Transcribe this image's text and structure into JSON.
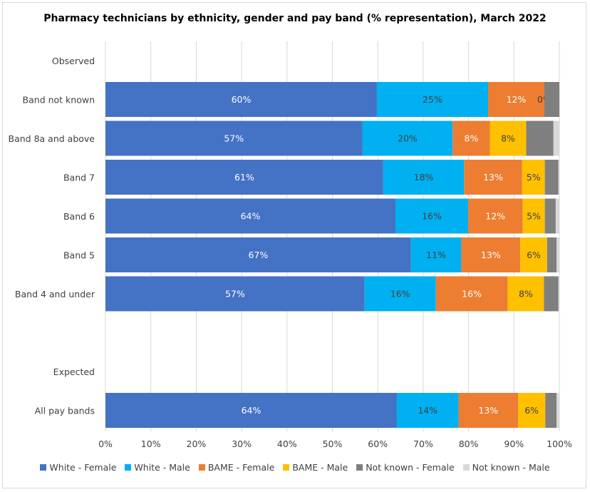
{
  "chart_data": {
    "type": "bar",
    "orientation": "horizontal",
    "stacked": true,
    "title": "Pharmacy technicians by ethnicity, gender and pay band (% representation), March 2022",
    "xlabel": "",
    "ylabel": "",
    "xlim": [
      0,
      100
    ],
    "x_ticks": [
      "0%",
      "10%",
      "20%",
      "30%",
      "40%",
      "50%",
      "60%",
      "70%",
      "80%",
      "90%",
      "100%"
    ],
    "group_labels": [
      {
        "label": "Observed",
        "row": 0
      },
      {
        "label": "Expected",
        "row": 8
      }
    ],
    "categories": [
      "Band not known",
      "Band 8a and above",
      "Band 7",
      "Band 6",
      "Band 5",
      "Band 4 and under",
      "All pay bands"
    ],
    "category_rows": [
      1,
      2,
      3,
      4,
      5,
      6,
      9
    ],
    "series": [
      {
        "name": "White - Female",
        "color": "#4472C4",
        "label_color": "#ffffff",
        "values": [
          59.8,
          56.6,
          61.2,
          63.9,
          67.3,
          57.1,
          64.2
        ],
        "labels": [
          "60%",
          "57%",
          "61%",
          "64%",
          "67%",
          "57%",
          "64%"
        ]
      },
      {
        "name": "White - Male",
        "color": "#00B0F0",
        "label_color": "#404040",
        "values": [
          24.5,
          19.9,
          17.8,
          16.0,
          11.1,
          15.7,
          13.6
        ],
        "labels": [
          "25%",
          "20%",
          "18%",
          "16%",
          "11%",
          "16%",
          "14%"
        ]
      },
      {
        "name": "BAME - Female",
        "color": "#ED7D31",
        "label_color": "#ffffff",
        "values": [
          12.4,
          8.2,
          12.8,
          12.0,
          13.0,
          15.8,
          13.1
        ],
        "labels": [
          "12%",
          "8%",
          "13%",
          "12%",
          "13%",
          "16%",
          "13%"
        ]
      },
      {
        "name": "BAME - Male",
        "color": "#FFC000",
        "label_color": "#404040",
        "values": [
          0.0,
          8.0,
          5.0,
          4.9,
          5.9,
          8.0,
          6.0
        ],
        "labels": [
          "0%",
          "8%",
          "5%",
          "5%",
          "6%",
          "8%",
          "6%"
        ]
      },
      {
        "name": "Not known - Female",
        "color": "#7F7F7F",
        "label_color": "#404040",
        "values": [
          3.3,
          6.0,
          3.0,
          2.4,
          2.1,
          3.2,
          2.5
        ],
        "labels": [
          "",
          "",
          "",
          "",
          "",
          "",
          ""
        ]
      },
      {
        "name": "Not known - Male",
        "color": "#D9D9D9",
        "label_color": "#404040",
        "values": [
          0.0,
          1.3,
          0.2,
          0.8,
          0.6,
          0.2,
          0.6
        ],
        "labels": [
          "",
          "",
          "",
          "",
          "",
          "",
          ""
        ]
      }
    ],
    "legend_position": "bottom",
    "grid": true
  }
}
